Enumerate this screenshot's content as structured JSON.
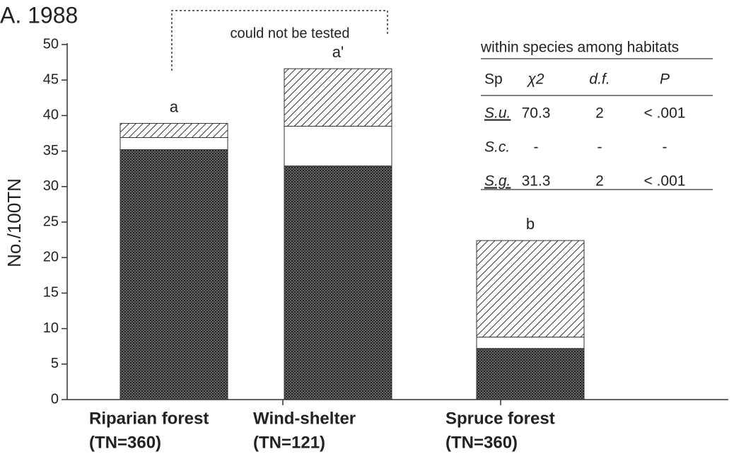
{
  "chart_data": {
    "type": "stacked-bar",
    "title": "A. 1988",
    "ylabel": "No./100TN",
    "categories": [
      "Riparian forest",
      "Wind-shelter",
      "Spruce forest"
    ],
    "sample_sizes": [
      "(TN=360)",
      "(TN=121)",
      "(TN=360)"
    ],
    "bar_letters": [
      "a",
      "a'",
      "b"
    ],
    "series": [
      {
        "color": "#444444",
        "pattern": "dots",
        "values": [
          35.2,
          32.9,
          7.2
        ]
      },
      {
        "color": "#ffffff",
        "pattern": "none",
        "values": [
          1.7,
          5.6,
          1.6
        ]
      },
      {
        "color": "#444444",
        "pattern": "hatch",
        "values": [
          2.0,
          8.1,
          13.6
        ]
      }
    ],
    "ylim": [
      0,
      50
    ],
    "yticks": [
      0,
      5,
      10,
      15,
      20,
      25,
      30,
      35,
      40,
      45,
      50
    ],
    "annotation": "could not be tested",
    "table": {
      "title": "within species among habitats",
      "header": [
        "Sp",
        "χ2",
        "d.f.",
        "P"
      ],
      "rows": [
        [
          "S.u.",
          "70.3",
          "2",
          "< .001"
        ],
        [
          "S.c.",
          "-",
          "-",
          "-"
        ],
        [
          "S.g.",
          "31.3",
          "2",
          "< .001"
        ]
      ]
    }
  }
}
